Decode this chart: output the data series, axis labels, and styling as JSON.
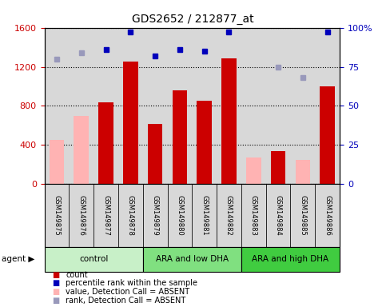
{
  "title": "GDS2652 / 212877_at",
  "samples": [
    "GSM149875",
    "GSM149876",
    "GSM149877",
    "GSM149878",
    "GSM149879",
    "GSM149880",
    "GSM149881",
    "GSM149882",
    "GSM149883",
    "GSM149884",
    "GSM149885",
    "GSM149886"
  ],
  "counts": [
    null,
    null,
    840,
    1250,
    620,
    960,
    850,
    1290,
    null,
    340,
    null,
    1000
  ],
  "absent_values": [
    450,
    700,
    null,
    null,
    null,
    null,
    null,
    null,
    270,
    null,
    250,
    null
  ],
  "percentile_ranks_pct": [
    null,
    null,
    86,
    97,
    82,
    86,
    85,
    97,
    null,
    null,
    null,
    97
  ],
  "absent_ranks_pct": [
    80,
    84,
    null,
    null,
    null,
    null,
    null,
    null,
    null,
    75,
    68,
    null
  ],
  "group_colors": {
    "control": "#c8f0c8",
    "ARA and low DHA": "#80e080",
    "ARA and high DHA": "#40cc40"
  },
  "bar_color_red": "#cc0000",
  "bar_color_pink": "#ffb3b3",
  "dot_color_blue": "#0000bb",
  "dot_color_lightblue": "#9999bb",
  "ylim_left": [
    0,
    1600
  ],
  "ylim_right": [
    0,
    100
  ],
  "yticks_left": [
    0,
    400,
    800,
    1200,
    1600
  ],
  "ytick_labels_left": [
    "0",
    "400",
    "800",
    "1200",
    "1600"
  ],
  "yticks_right": [
    0,
    25,
    50,
    75,
    100
  ],
  "ytick_labels_right": [
    "0",
    "25",
    "50",
    "75",
    "100%"
  ],
  "ylabel_left_color": "#cc0000",
  "ylabel_right_color": "#0000bb",
  "background_color": "#ffffff",
  "plot_bg": "#d8d8d8",
  "legend_items": [
    {
      "label": "count",
      "color": "#cc0000"
    },
    {
      "label": "percentile rank within the sample",
      "color": "#0000bb"
    },
    {
      "label": "value, Detection Call = ABSENT",
      "color": "#ffb3b3"
    },
    {
      "label": "rank, Detection Call = ABSENT",
      "color": "#9999bb"
    }
  ],
  "groups_info": [
    {
      "label": "control",
      "start": 0,
      "end": 3,
      "color": "#c8f0c8"
    },
    {
      "label": "ARA and low DHA",
      "start": 4,
      "end": 7,
      "color": "#80e080"
    },
    {
      "label": "ARA and high DHA",
      "start": 8,
      "end": 11,
      "color": "#40cc40"
    }
  ]
}
